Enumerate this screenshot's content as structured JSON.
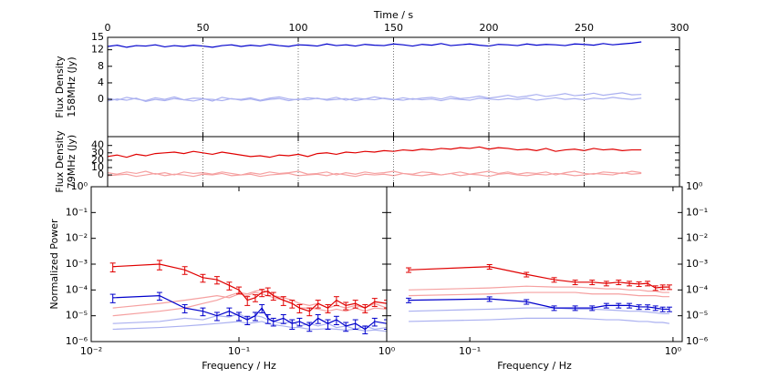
{
  "chart_data": [
    {
      "type": "line",
      "xlabel": "Time / s",
      "ylabel": [
        "Flux Density",
        "158MHz (Jy)"
      ],
      "xlim": [
        0,
        300
      ],
      "ylim": [
        -9,
        15
      ],
      "xticks": [
        0,
        50,
        100,
        150,
        200,
        250,
        300
      ],
      "yticks": [
        0,
        4,
        8,
        12,
        15
      ],
      "grid": "x",
      "x": [
        0,
        5,
        10,
        15,
        20,
        25,
        30,
        35,
        40,
        45,
        50,
        55,
        60,
        65,
        70,
        75,
        80,
        85,
        90,
        95,
        100,
        105,
        110,
        115,
        120,
        125,
        130,
        135,
        140,
        145,
        150,
        155,
        160,
        165,
        170,
        175,
        180,
        185,
        190,
        195,
        200,
        205,
        210,
        215,
        220,
        225,
        230,
        235,
        240,
        245,
        250,
        255,
        260,
        265,
        270,
        275,
        280
      ],
      "series": [
        {
          "color": "#aab0f0",
          "values": [
            0.3,
            -0.2,
            0.5,
            0.1,
            -0.3,
            0.4,
            0.0,
            0.6,
            -0.1,
            0.3,
            0.2,
            -0.4,
            0.5,
            0.1,
            0.0,
            0.4,
            -0.2,
            0.3,
            0.6,
            0.1,
            -0.1,
            0.4,
            0.2,
            0.0,
            0.5,
            -0.2,
            0.3,
            0.1,
            0.6,
            0.2,
            -0.1,
            0.4,
            0.0,
            0.3,
            0.5,
            0.1,
            0.7,
            0.2,
            0.4,
            0.8,
            0.3,
            0.6,
            1.0,
            0.5,
            0.8,
            1.2,
            0.7,
            1.0,
            1.4,
            0.9,
            1.1,
            1.5,
            1.0,
            1.3,
            1.6,
            1.1,
            1.2
          ]
        },
        {
          "color": "#aab0f0",
          "values": [
            -0.4,
            0.1,
            -0.2,
            0.3,
            -0.5,
            0.0,
            -0.3,
            0.2,
            -0.1,
            -0.4,
            0.1,
            0.0,
            -0.3,
            0.2,
            -0.2,
            0.1,
            -0.4,
            0.0,
            0.2,
            -0.3,
            0.1,
            -0.1,
            0.3,
            -0.2,
            0.0,
            0.2,
            -0.3,
            0.1,
            -0.1,
            0.3,
            0.0,
            -0.2,
            0.2,
            -0.1,
            0.1,
            -0.3,
            0.2,
            0.0,
            -0.2,
            0.3,
            0.1,
            -0.1,
            0.2,
            0.0,
            0.3,
            -0.2,
            0.1,
            0.4,
            0.0,
            0.2,
            -0.1,
            0.3,
            0.1,
            0.5,
            0.2,
            0.0,
            0.3
          ]
        },
        {
          "color": "#0000cc",
          "values": [
            12.8,
            13.1,
            12.6,
            13.0,
            12.9,
            13.2,
            12.7,
            13.0,
            12.8,
            13.1,
            12.9,
            12.6,
            13.0,
            13.2,
            12.8,
            13.1,
            12.9,
            13.3,
            13.0,
            12.8,
            13.2,
            13.1,
            12.9,
            13.4,
            13.0,
            13.2,
            12.9,
            13.3,
            13.1,
            13.0,
            13.4,
            13.2,
            12.9,
            13.3,
            13.1,
            13.5,
            13.0,
            13.2,
            13.4,
            13.1,
            12.9,
            13.3,
            13.2,
            13.0,
            13.4,
            13.1,
            13.3,
            13.2,
            13.0,
            13.4,
            13.3,
            13.1,
            13.5,
            13.2,
            13.4,
            13.6,
            13.9
          ]
        }
      ]
    },
    {
      "type": "line",
      "ylabel": [
        "Flux Density",
        "79MHz (Jy)"
      ],
      "xlim": [
        0,
        300
      ],
      "ylim": [
        -16,
        52
      ],
      "xticks": [
        0,
        50,
        100,
        150,
        200,
        250,
        300
      ],
      "yticks": [
        0,
        10,
        20,
        30,
        40
      ],
      "grid": "x",
      "x": [
        0,
        5,
        10,
        15,
        20,
        25,
        30,
        35,
        40,
        45,
        50,
        55,
        60,
        65,
        70,
        75,
        80,
        85,
        90,
        95,
        100,
        105,
        110,
        115,
        120,
        125,
        130,
        135,
        140,
        145,
        150,
        155,
        160,
        165,
        170,
        175,
        180,
        185,
        190,
        195,
        200,
        205,
        210,
        215,
        220,
        225,
        230,
        235,
        240,
        245,
        250,
        255,
        260,
        265,
        270,
        275,
        280
      ],
      "series": [
        {
          "color": "#f5a0a0",
          "values": [
            3,
            1,
            4,
            2,
            5,
            1,
            3,
            0,
            4,
            2,
            3,
            1,
            4,
            2,
            0,
            3,
            1,
            4,
            2,
            3,
            5,
            1,
            2,
            4,
            0,
            3,
            1,
            4,
            2,
            3,
            5,
            2,
            1,
            4,
            3,
            0,
            2,
            4,
            1,
            3,
            5,
            2,
            4,
            1,
            3,
            2,
            4,
            0,
            3,
            5,
            2,
            1,
            4,
            3,
            2,
            5,
            3
          ]
        },
        {
          "color": "#f5a0a0",
          "values": [
            -1,
            0,
            1,
            -2,
            0,
            2,
            -1,
            1,
            0,
            -2,
            1,
            0,
            2,
            -1,
            0,
            1,
            -2,
            0,
            1,
            2,
            -1,
            0,
            1,
            -1,
            2,
            0,
            -2,
            1,
            0,
            1,
            -1,
            2,
            0,
            -1,
            1,
            0,
            2,
            -1,
            1,
            0,
            -2,
            1,
            2,
            0,
            -1,
            1,
            0,
            2,
            1,
            -1,
            0,
            2,
            1,
            0,
            3,
            1,
            2
          ]
        },
        {
          "color": "#e00000",
          "values": [
            25,
            27,
            24,
            28,
            26,
            29,
            30,
            31,
            29,
            32,
            30,
            28,
            31,
            29,
            27,
            25,
            26,
            24,
            27,
            26,
            28,
            25,
            29,
            30,
            28,
            31,
            30,
            32,
            31,
            33,
            32,
            34,
            33,
            35,
            34,
            36,
            35,
            37,
            36,
            38,
            35,
            37,
            36,
            34,
            35,
            33,
            36,
            32,
            34,
            35,
            33,
            36,
            34,
            35,
            33,
            34,
            34
          ]
        }
      ]
    },
    {
      "type": "line",
      "xlabel": "Frequency / Hz",
      "ylabel": "Normalized Power",
      "log": true,
      "xlim": [
        0.01,
        1
      ],
      "ylim": [
        1e-06,
        1
      ],
      "xticks": [
        {
          "value": 0.01,
          "label": "10⁻²"
        },
        {
          "value": 0.1,
          "label": "10⁻¹"
        },
        {
          "value": 1,
          "label": "10⁰"
        }
      ],
      "yticks": [
        {
          "value": 1e-06,
          "label": "10⁻⁶"
        },
        {
          "value": 1e-05,
          "label": "10⁻⁵"
        },
        {
          "value": 0.0001,
          "label": "10⁻⁴"
        },
        {
          "value": 0.001,
          "label": "10⁻³"
        },
        {
          "value": 0.01,
          "label": "10⁻²"
        },
        {
          "value": 0.1,
          "label": "10⁻¹"
        },
        {
          "value": 1,
          "label": "10⁰"
        }
      ],
      "x": [
        0.014,
        0.029,
        0.043,
        0.057,
        0.071,
        0.086,
        0.1,
        0.114,
        0.129,
        0.143,
        0.157,
        0.171,
        0.2,
        0.229,
        0.257,
        0.3,
        0.343,
        0.4,
        0.457,
        0.529,
        0.614,
        0.714,
        0.829,
        1.0
      ],
      "series": [
        {
          "color": "#aab0f0",
          "values": [
            5e-06,
            6e-06,
            8e-06,
            7e-06,
            1e-05,
            9e-06,
            1.2e-05,
            8e-06,
            1e-05,
            9e-06,
            7e-06,
            6e-06,
            5e-06,
            6e-06,
            4e-06,
            5e-06,
            4e-06,
            5e-06,
            3.5e-06,
            4e-06,
            3e-06,
            4e-06,
            3e-06,
            3.5e-06
          ]
        },
        {
          "color": "#aab0f0",
          "values": [
            3e-06,
            3.5e-06,
            4e-06,
            4.5e-06,
            5e-06,
            5.5e-06,
            6e-06,
            5e-06,
            5.5e-06,
            6e-06,
            5e-06,
            4.5e-06,
            4e-06,
            3.5e-06,
            3.5e-06,
            3e-06,
            3e-06,
            3.2e-06,
            3e-06,
            2.8e-06,
            3e-06,
            2.6e-06,
            2.8e-06,
            2.5e-06
          ]
        },
        {
          "color": "#f5a0a0",
          "values": [
            1e-05,
            1.5e-05,
            2e-05,
            3e-05,
            4e-05,
            6e-05,
            8e-05,
            7e-05,
            9e-05,
            0.0001,
            8e-05,
            6e-05,
            5e-05,
            4e-05,
            3e-05,
            2.5e-05,
            3e-05,
            2e-05,
            2.5e-05,
            2e-05,
            2.5e-05,
            2e-05,
            3e-05,
            2e-05
          ]
        },
        {
          "color": "#f5a0a0",
          "values": [
            2e-05,
            3e-05,
            4e-05,
            5e-05,
            6e-05,
            5e-05,
            7e-05,
            6e-05,
            8e-05,
            7e-05,
            6e-05,
            5e-05,
            4e-05,
            3e-05,
            2e-05,
            2e-05,
            1.8e-05,
            1.5e-05,
            1.8e-05,
            1.5e-05,
            2e-05,
            1.5e-05,
            2e-05,
            1.8e-05
          ]
        },
        {
          "color": "#e00000",
          "values": [
            0.0008,
            0.001,
            0.0006,
            0.0003,
            0.00025,
            0.00015,
            0.0001,
            4e-05,
            5e-05,
            8e-05,
            9e-05,
            6e-05,
            4e-05,
            3e-05,
            2e-05,
            1.5e-05,
            3e-05,
            2e-05,
            4e-05,
            2.5e-05,
            3e-05,
            2e-05,
            3.5e-05,
            3e-05
          ],
          "errors": [
            0.0003,
            0.0004,
            0.0002,
            0.0001,
            8e-05,
            5e-05,
            3e-05,
            1.5e-05,
            1.5e-05,
            2.5e-05,
            3e-05,
            2e-05,
            1.5e-05,
            1e-05,
            7e-06,
            5e-06,
            1e-05,
            7e-06,
            1.5e-05,
            8e-06,
            1e-05,
            7e-06,
            1.2e-05,
            1e-05
          ]
        },
        {
          "color": "#0000cc",
          "values": [
            5e-05,
            6e-05,
            2e-05,
            1.5e-05,
            1e-05,
            1.5e-05,
            1e-05,
            7e-06,
            1e-05,
            2e-05,
            8e-06,
            6e-06,
            8e-06,
            5e-06,
            6e-06,
            4e-06,
            8e-06,
            5e-06,
            7e-06,
            4e-06,
            5e-06,
            3e-06,
            6e-06,
            5e-06
          ],
          "errors": [
            1.8e-05,
            2e-05,
            7e-06,
            5e-06,
            3.5e-06,
            5e-06,
            3.5e-06,
            2.5e-06,
            3.5e-06,
            7e-06,
            3e-06,
            2e-06,
            3e-06,
            2e-06,
            2e-06,
            1.5e-06,
            3e-06,
            2e-06,
            2.5e-06,
            1.5e-06,
            2e-06,
            1e-06,
            2e-06,
            2e-06
          ]
        }
      ]
    },
    {
      "type": "line",
      "xlabel": "Frequency / Hz",
      "log": true,
      "xlim": [
        0.039,
        1.11
      ],
      "ylim": [
        1e-06,
        1
      ],
      "xticks": [
        {
          "value": 0.1,
          "label": "10⁻¹"
        },
        {
          "value": 1,
          "label": "10⁰"
        }
      ],
      "yticks": [
        {
          "value": 1e-06,
          "label": "10⁻⁶"
        },
        {
          "value": 1e-05,
          "label": "10⁻⁵"
        },
        {
          "value": 0.0001,
          "label": "10⁻⁴"
        },
        {
          "value": 0.001,
          "label": "10⁻³"
        },
        {
          "value": 0.01,
          "label": "10⁻²"
        },
        {
          "value": 0.1,
          "label": "10⁻¹"
        },
        {
          "value": 1,
          "label": "10⁰"
        }
      ],
      "x": [
        0.05,
        0.125,
        0.19,
        0.26,
        0.33,
        0.4,
        0.47,
        0.54,
        0.61,
        0.68,
        0.75,
        0.82,
        0.89,
        0.96
      ],
      "series": [
        {
          "color": "#aab0f0",
          "values": [
            1.5e-05,
            1.8e-05,
            2e-05,
            2e-05,
            1.8e-05,
            1.8e-05,
            1.7e-05,
            1.6e-05,
            1.5e-05,
            1.5e-05,
            1.4e-05,
            1.3e-05,
            1.2e-05,
            1.2e-05
          ]
        },
        {
          "color": "#aab0f0",
          "values": [
            6e-06,
            7e-06,
            8e-06,
            8e-06,
            8e-06,
            7.5e-06,
            7e-06,
            7e-06,
            6.5e-06,
            6e-06,
            6e-06,
            5.5e-06,
            5.5e-06,
            5e-06
          ]
        },
        {
          "color": "#f5a0a0",
          "values": [
            0.0001,
            0.00012,
            0.00014,
            0.00013,
            0.00013,
            0.00012,
            0.00011,
            0.00011,
            0.0001,
            0.0001,
            9e-05,
            9e-05,
            8e-05,
            8e-05
          ]
        },
        {
          "color": "#f5a0a0",
          "values": [
            6e-05,
            7e-05,
            8e-05,
            8e-05,
            8e-05,
            7e-05,
            7e-05,
            7e-05,
            6.5e-05,
            6e-05,
            6e-05,
            6e-05,
            5.5e-05,
            5.5e-05
          ]
        },
        {
          "color": "#e00000",
          "values": [
            0.0006,
            0.0008,
            0.0004,
            0.00025,
            0.0002,
            0.0002,
            0.00018,
            0.0002,
            0.00018,
            0.00017,
            0.00018,
            0.00012,
            0.00013,
            0.00013
          ],
          "errors": [
            0.00012,
            0.00016,
            8e-05,
            5e-05,
            4e-05,
            4e-05,
            3.6e-05,
            4e-05,
            3.6e-05,
            3.4e-05,
            3.6e-05,
            2.4e-05,
            2.6e-05,
            2.6e-05
          ]
        },
        {
          "color": "#0000cc",
          "values": [
            4e-05,
            4.5e-05,
            3.5e-05,
            2e-05,
            2e-05,
            2e-05,
            2.5e-05,
            2.5e-05,
            2.5e-05,
            2.2e-05,
            2.2e-05,
            2e-05,
            1.8e-05,
            1.8e-05
          ],
          "errors": [
            8e-06,
            9e-06,
            7e-06,
            4e-06,
            4e-06,
            4e-06,
            5e-06,
            5e-06,
            5e-06,
            4.4e-06,
            4.4e-06,
            4e-06,
            3.6e-06,
            3.6e-06
          ]
        }
      ]
    }
  ]
}
